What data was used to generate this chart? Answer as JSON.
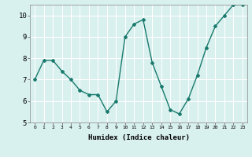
{
  "x": [
    0,
    1,
    2,
    3,
    4,
    5,
    6,
    7,
    8,
    9,
    10,
    11,
    12,
    13,
    14,
    15,
    16,
    17,
    18,
    19,
    20,
    21,
    22,
    23
  ],
  "y": [
    7.0,
    7.9,
    7.9,
    7.4,
    7.0,
    6.5,
    6.3,
    6.3,
    5.5,
    6.0,
    9.0,
    9.6,
    9.8,
    7.8,
    6.7,
    5.6,
    5.4,
    6.1,
    7.2,
    8.5,
    9.5,
    10.0,
    10.5,
    10.5
  ],
  "xlabel": "Humidex (Indice chaleur)",
  "ylim": [
    5,
    10.5
  ],
  "xlim": [
    -0.5,
    23.5
  ],
  "yticks": [
    5,
    6,
    7,
    8,
    9,
    10
  ],
  "xticks": [
    0,
    1,
    2,
    3,
    4,
    5,
    6,
    7,
    8,
    9,
    10,
    11,
    12,
    13,
    14,
    15,
    16,
    17,
    18,
    19,
    20,
    21,
    22,
    23
  ],
  "line_color": "#1a7a6e",
  "marker": "D",
  "marker_size": 2.0,
  "bg_color": "#d8f0ee",
  "grid_color": "#ffffff",
  "line_width": 1.0
}
